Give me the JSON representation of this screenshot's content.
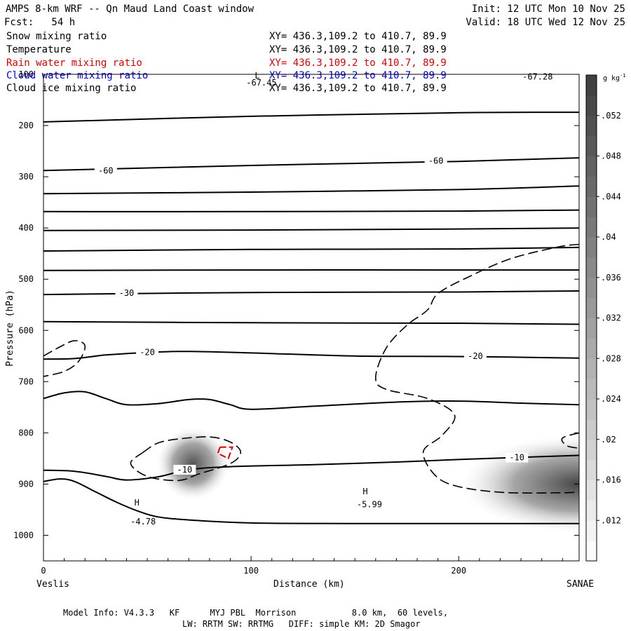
{
  "header": {
    "title": "AMPS 8-km WRF -- Qn Maud Land Coast window",
    "fcst": "Fcst:   54 h",
    "init": "Init: 12 UTC Mon 10 Nov 25",
    "valid": "Valid: 18 UTC Wed 12 Nov 25"
  },
  "fields": [
    {
      "name": "Snow mixing ratio",
      "xy": "XY= 436.3,109.2 to 410.7, 89.9",
      "color": "#000000"
    },
    {
      "name": "Temperature",
      "xy": "XY= 436.3,109.2 to 410.7, 89.9",
      "color": "#000000"
    },
    {
      "name": "Rain water mixing ratio",
      "xy": "XY= 436.3,109.2 to 410.7, 89.9",
      "color": "#e00000"
    },
    {
      "name": "Cloud water mixing ratio",
      "xy": "XY= 436.3,109.2 to 410.7, 89.9",
      "color": "#0000e0"
    },
    {
      "name": "Cloud ice mixing ratio",
      "xy": "XY= 436.3,109.2 to 410.7, 89.9",
      "color": "#000000"
    }
  ],
  "footer": {
    "line1": "Model Info: V4.3.3   KF      MYJ PBL  Morrison           8.0 km,  60 levels,",
    "line2": "LW: RRTM SW: RRTMG   DIFF: simple KM: 2D Smagor"
  },
  "chart_data": {
    "type": "contour",
    "xlabel": "Distance (km)",
    "ylabel": "Pressure (hPa)",
    "xlim": [
      0,
      258
    ],
    "ylim": [
      1050,
      100
    ],
    "x_ticks": [
      0,
      100,
      200
    ],
    "y_ticks": [
      100,
      200,
      300,
      400,
      500,
      600,
      700,
      800,
      900,
      1000
    ],
    "x_start_label": "Veslis",
    "x_end_label": "SANAE",
    "colorbar": {
      "units": "g kg",
      "units_exp": "-1",
      "tick_labels": [
        ".012",
        ".016",
        ".02",
        ".024",
        ".028",
        ".032",
        ".036",
        ".04",
        ".044",
        ".048",
        ".052"
      ],
      "tick_values": [
        0.012,
        0.016,
        0.02,
        0.024,
        0.028,
        0.032,
        0.036,
        0.04,
        0.044,
        0.048,
        0.052
      ],
      "min": 0.008,
      "max": 0.056,
      "color_low": "#ffffff",
      "color_high": "#3c3c3c"
    },
    "temperature_contours": [
      {
        "points": [
          [
            0,
            193
          ],
          [
            100,
            182
          ],
          [
            200,
            175
          ],
          [
            258,
            174
          ]
        ]
      },
      {
        "points": [
          [
            0,
            288
          ],
          [
            100,
            278
          ],
          [
            200,
            270
          ],
          [
            258,
            263
          ]
        ],
        "label": "-60",
        "label_positions": [
          [
            30,
            288
          ],
          [
            189,
            269
          ]
        ]
      },
      {
        "points": [
          [
            0,
            333
          ],
          [
            100,
            330
          ],
          [
            200,
            325
          ],
          [
            258,
            318
          ]
        ]
      },
      {
        "points": [
          [
            0,
            368
          ],
          [
            100,
            368
          ],
          [
            200,
            367
          ],
          [
            258,
            365
          ]
        ]
      },
      {
        "points": [
          [
            0,
            405
          ],
          [
            100,
            404
          ],
          [
            200,
            402
          ],
          [
            258,
            400
          ]
        ]
      },
      {
        "points": [
          [
            0,
            445
          ],
          [
            100,
            442
          ],
          [
            200,
            441
          ],
          [
            258,
            438
          ]
        ]
      },
      {
        "points": [
          [
            0,
            483
          ],
          [
            100,
            482
          ],
          [
            200,
            482
          ],
          [
            258,
            482
          ]
        ]
      },
      {
        "points": [
          [
            0,
            530
          ],
          [
            100,
            526
          ],
          [
            200,
            525
          ],
          [
            258,
            523
          ]
        ],
        "label": "-30",
        "label_positions": [
          [
            40,
            527
          ]
        ]
      },
      {
        "points": [
          [
            0,
            583
          ],
          [
            100,
            585
          ],
          [
            200,
            586
          ],
          [
            258,
            588
          ]
        ]
      },
      {
        "points": [
          [
            0,
            656
          ],
          [
            15,
            655
          ],
          [
            30,
            648
          ],
          [
            50,
            643
          ],
          [
            70,
            641
          ],
          [
            100,
            644
          ],
          [
            150,
            650
          ],
          [
            200,
            651
          ],
          [
            258,
            654
          ]
        ],
        "label": "-20",
        "label_positions": [
          [
            50,
            643
          ],
          [
            208,
            650
          ]
        ]
      },
      {
        "points": [
          [
            0,
            733
          ],
          [
            10,
            722
          ],
          [
            20,
            720
          ],
          [
            30,
            733
          ],
          [
            40,
            745
          ],
          [
            55,
            743
          ],
          [
            70,
            735
          ],
          [
            80,
            735
          ],
          [
            90,
            745
          ],
          [
            100,
            754
          ],
          [
            130,
            748
          ],
          [
            170,
            740
          ],
          [
            200,
            738
          ],
          [
            230,
            742
          ],
          [
            258,
            745
          ]
        ]
      },
      {
        "points": [
          [
            0,
            873
          ],
          [
            15,
            875
          ],
          [
            30,
            885
          ],
          [
            40,
            892
          ],
          [
            55,
            886
          ],
          [
            70,
            872
          ],
          [
            90,
            866
          ],
          [
            130,
            862
          ],
          [
            170,
            857
          ],
          [
            200,
            852
          ],
          [
            258,
            844
          ]
        ],
        "label": "-10",
        "label_positions": [
          [
            68,
            872
          ],
          [
            228,
            848
          ]
        ]
      },
      {
        "points": [
          [
            0,
            895
          ],
          [
            8,
            890
          ],
          [
            15,
            895
          ],
          [
            25,
            915
          ],
          [
            35,
            935
          ],
          [
            45,
            952
          ],
          [
            55,
            964
          ],
          [
            70,
            970
          ],
          [
            100,
            976
          ],
          [
            150,
            977
          ],
          [
            200,
            977
          ],
          [
            258,
            977
          ]
        ]
      }
    ],
    "dashed_contours": [
      {
        "points": [
          [
            0,
            650
          ],
          [
            8,
            632
          ],
          [
            15,
            620
          ],
          [
            20,
            630
          ],
          [
            17,
            660
          ],
          [
            10,
            680
          ],
          [
            0,
            690
          ]
        ]
      },
      {
        "points": [
          [
            48,
            838
          ],
          [
            55,
            820
          ],
          [
            65,
            812
          ],
          [
            80,
            808
          ],
          [
            90,
            818
          ],
          [
            95,
            838
          ],
          [
            90,
            860
          ],
          [
            75,
            880
          ],
          [
            65,
            893
          ],
          [
            50,
            885
          ],
          [
            42,
            860
          ],
          [
            48,
            838
          ]
        ]
      },
      {
        "points": [
          [
            258,
            432
          ],
          [
            248,
            437
          ],
          [
            225,
            460
          ],
          [
            205,
            495
          ],
          [
            190,
            528
          ],
          [
            185,
            560
          ],
          [
            175,
            590
          ],
          [
            165,
            635
          ],
          [
            160,
            692
          ],
          [
            165,
            715
          ],
          [
            185,
            733
          ],
          [
            198,
            765
          ],
          [
            192,
            805
          ],
          [
            183,
            836
          ],
          [
            188,
            880
          ],
          [
            198,
            903
          ],
          [
            220,
            916
          ],
          [
            250,
            917
          ],
          [
            258,
            915
          ]
        ]
      },
      {
        "points": [
          [
            258,
            800
          ],
          [
            250,
            810
          ],
          [
            252,
            825
          ],
          [
            258,
            830
          ]
        ]
      }
    ],
    "shaded_regions": [
      {
        "name": "cloud-water-left",
        "center": [
          72,
          860
        ],
        "peak": 0.05
      },
      {
        "name": "cloud-water-right",
        "center": [
          258,
          900
        ],
        "peak": 0.054
      }
    ],
    "rain_contour": {
      "points": [
        [
          85,
          828
        ],
        [
          91,
          828
        ],
        [
          89,
          850
        ],
        [
          84,
          840
        ],
        [
          85,
          828
        ]
      ]
    },
    "annotations": [
      {
        "text": "H",
        "x": 45,
        "y": 942
      },
      {
        "text": "-4.78",
        "x": 48,
        "y": 979
      },
      {
        "text": "H",
        "x": 155,
        "y": 920
      },
      {
        "text": "-5.99",
        "x": 157,
        "y": 945
      },
      {
        "text": "-67.28",
        "x": 238,
        "y": 110
      },
      {
        "text": "-67.45",
        "x": 105,
        "y": 122
      },
      {
        "text": "L",
        "x": 103,
        "y": 108
      }
    ]
  }
}
